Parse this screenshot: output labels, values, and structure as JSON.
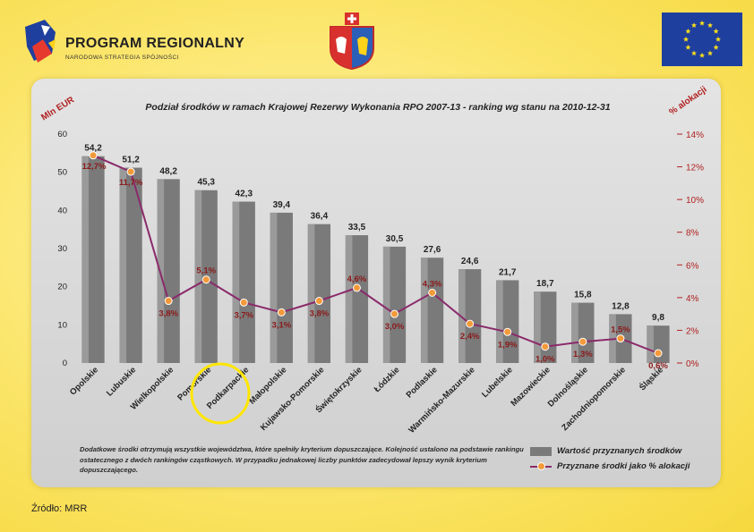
{
  "header": {
    "program_title": "PROGRAM REGIONALNY",
    "program_subtitle": "NARODOWA STRATEGIA SPÓJNOŚCI"
  },
  "colors": {
    "bar": "#7a7a7a",
    "line": "#8a2a6a",
    "marker": "#f39a3a",
    "label_bar": "#222222",
    "label_pct": "#8b1a1a",
    "right_axis": "#b02020"
  },
  "chart_data": {
    "type": "bar",
    "title": "Podział środków w ramach Krajowej Rezerwy Wykonania RPO 2007-13 - ranking wg stanu na 2010-12-31",
    "ylabel": "Mln EUR",
    "y2label": "% alokacji",
    "ylim": [
      0,
      60
    ],
    "y2lim": [
      0,
      14
    ],
    "yticks": [
      0,
      10,
      20,
      30,
      40,
      50,
      60
    ],
    "y2ticks": [
      "0%",
      "2%",
      "4%",
      "6%",
      "8%",
      "10%",
      "12%",
      "14%"
    ],
    "categories": [
      "Opolskie",
      "Lubuskie",
      "Wielkopolskie",
      "Pomorskie",
      "Podkarpackie",
      "Małopolskie",
      "Kujawsko-Pomorskie",
      "Świętokrzyskie",
      "Łódzkie",
      "Podlaskie",
      "Warmińsko-Mazurskie",
      "Lubelskie",
      "Mazowieckie",
      "Dolnośląskie",
      "Zachodniopomorskie",
      "Śląskie"
    ],
    "series": [
      {
        "name": "Wartość przyznanych środków",
        "values": [
          54.2,
          51.2,
          48.2,
          45.3,
          42.3,
          39.4,
          36.4,
          33.5,
          30.5,
          27.6,
          24.6,
          21.7,
          18.7,
          15.8,
          12.8,
          9.8
        ],
        "labels": [
          "54,2",
          "51,2",
          "48,2",
          "45,3",
          "42,3",
          "39,4",
          "36,4",
          "33,5",
          "30,5",
          "27,6",
          "24,6",
          "21,7",
          "18,7",
          "15,8",
          "12,8",
          "9,8"
        ]
      },
      {
        "name": "Przyznane środki jako % alokacji",
        "values": [
          12.7,
          11.7,
          3.8,
          5.1,
          3.7,
          3.1,
          3.8,
          4.6,
          3.0,
          4.3,
          2.4,
          1.9,
          1.0,
          1.3,
          1.5,
          0.6
        ],
        "labels": [
          "12,7%",
          "11,7%",
          "3,8%",
          "5,1%",
          "3,7%",
          "3,1%",
          "3,8%",
          "4,6%",
          "3,0%",
          "4,3%",
          "2,4%",
          "1,9%",
          "1,0%",
          "1,3%",
          "1,5%",
          "0,6%"
        ]
      }
    ],
    "highlighted_category": "Podkarpackie",
    "legend": [
      "Wartość przyznanych środków",
      "Przyznane środki jako % alokacji"
    ]
  },
  "note": "Dodatkowe środki otrzymują wszystkie województwa, które spełniły kryterium dopuszczające. Kolejność ustalono na podstawie rankingu ostatecznego z dwóch rankingów cząstkowych. W przypadku jednakowej liczby punktów zadecydował lepszy wynik kryterium dopuszczającego.",
  "source": "Źródło:  MRR"
}
